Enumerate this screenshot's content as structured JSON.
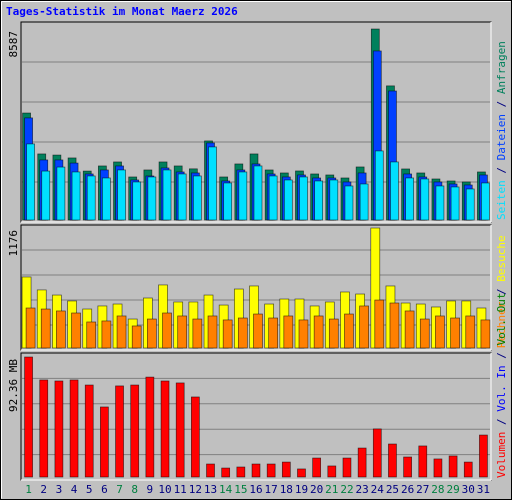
{
  "chart_data": [
    {
      "type": "bar",
      "title": "Tages-Statistik im Monat Maerz 2026",
      "ylim": [
        0,
        8587
      ],
      "yticks": [
        8587
      ],
      "legend_separator": " / ",
      "series": [
        {
          "name": "Anfragen",
          "color": "#00805c",
          "values": [
            4810,
            2970,
            2920,
            2790,
            2200,
            2430,
            2610,
            1935,
            2250,
            2610,
            2430,
            2300,
            3555,
            1935,
            2520,
            2970,
            2250,
            2115,
            2205,
            2070,
            2025,
            1890,
            2385,
            8587,
            6030,
            2295,
            2115,
            1845,
            1755,
            1710,
            2160
          ]
        },
        {
          "name": "Dateien",
          "color": "#0040ff",
          "values": [
            4590,
            2700,
            2700,
            2560,
            2070,
            2250,
            2430,
            1800,
            1980,
            2340,
            2160,
            2115,
            3465,
            1755,
            2250,
            2520,
            2070,
            1935,
            2025,
            1890,
            1890,
            1710,
            2115,
            7600,
            5800,
            2070,
            1935,
            1710,
            1620,
            1575,
            2025
          ]
        },
        {
          "name": "Seiten",
          "color": "#00e0ff",
          "values": [
            3420,
            2200,
            2380,
            2160,
            1980,
            1890,
            2250,
            1710,
            1935,
            2250,
            2070,
            1980,
            3285,
            1665,
            2160,
            2430,
            1980,
            1800,
            1935,
            1755,
            1800,
            1530,
            1620,
            3105,
            2610,
            1890,
            1845,
            1530,
            1485,
            1395,
            1665
          ]
        }
      ]
    },
    {
      "type": "bar",
      "ylim": [
        0,
        1176
      ],
      "yticks": [
        1176
      ],
      "series": [
        {
          "name": "Besuche",
          "color": "#ffff00",
          "values": [
            696,
            569,
            519,
            461,
            382,
            412,
            431,
            284,
            490,
            618,
            451,
            451,
            519,
            421,
            578,
            608,
            431,
            480,
            480,
            412,
            451,
            549,
            529,
            1176,
            608,
            441,
            431,
            402,
            461,
            461,
            392
          ]
        },
        {
          "name": "Rechner",
          "color": "#ff8000",
          "values": [
            392,
            382,
            363,
            343,
            255,
            265,
            314,
            216,
            284,
            343,
            314,
            284,
            314,
            275,
            294,
            333,
            294,
            314,
            275,
            314,
            284,
            333,
            412,
            470,
            441,
            363,
            284,
            314,
            294,
            314,
            275
          ]
        }
      ]
    },
    {
      "type": "bar",
      "ylim": [
        0,
        92.36
      ],
      "yticks": [
        {
          "value": 92.36,
          "label": "92.36 MB"
        }
      ],
      "series": [
        {
          "name": "Volumen",
          "color": "#ff0000",
          "values": [
            92.36,
            74.7,
            73.9,
            74.7,
            70.8,
            53.9,
            70.1,
            70.8,
            76.9,
            73.9,
            72.4,
            61.6,
            10.0,
            6.9,
            7.7,
            10.0,
            10.0,
            11.5,
            6.2,
            14.6,
            8.5,
            14.6,
            22.3,
            37.0,
            25.4,
            15.4,
            23.9,
            13.9,
            16.2,
            11.5,
            32.3
          ]
        }
      ],
      "legend_only": [
        {
          "name": "Vol. In",
          "color": "#0000ff"
        },
        {
          "name": "Vol. Out",
          "color": "#008000"
        }
      ],
      "categories": [
        "1",
        "2",
        "3",
        "4",
        "5",
        "6",
        "7",
        "8",
        "9",
        "10",
        "11",
        "12",
        "13",
        "14",
        "15",
        "16",
        "17",
        "18",
        "19",
        "20",
        "21",
        "22",
        "23",
        "24",
        "25",
        "26",
        "27",
        "28",
        "29",
        "30",
        "31"
      ],
      "category_color": "#000080",
      "highlight_indices": [
        0,
        6,
        7,
        13,
        14,
        20,
        21,
        27,
        28
      ],
      "highlight_color": "#008040"
    }
  ]
}
